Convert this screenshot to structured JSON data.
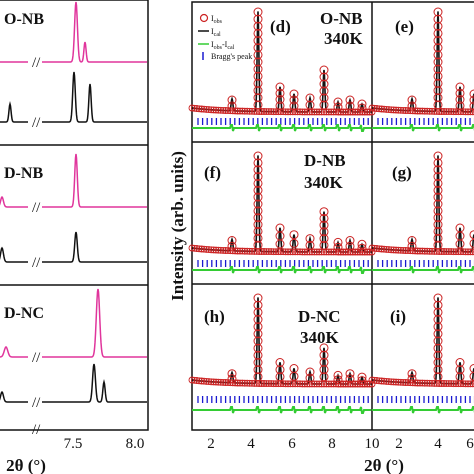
{
  "colors": {
    "pink": "#e0359c",
    "black": "#111111",
    "obs": "#cc2222",
    "calc": "#111111",
    "fit": "#cc2222",
    "diff": "#33cc33",
    "bragg": "#1a1ad0"
  },
  "left_panel": {
    "sample_labels": [
      "O-NB",
      "D-NB",
      "D-NC"
    ],
    "x_tick_labels": [
      "7.5",
      "8.0"
    ],
    "x_axis_label": "2θ (°)",
    "break_mark": "//"
  },
  "right_panel": {
    "y_axis_label": "Intensity (arb. units)",
    "x_axis_label": "2θ (°)",
    "x_tick_labels": [
      "2",
      "4",
      "6",
      "8",
      "10",
      "2",
      "4",
      "6"
    ],
    "panels": [
      {
        "letter": "(d)",
        "sample": "O-NB",
        "temp": "340K"
      },
      {
        "letter": "(e)",
        "sample": "",
        "temp": ""
      },
      {
        "letter": "(f)",
        "sample": "D-NB",
        "temp": "340K"
      },
      {
        "letter": "(g)",
        "sample": "",
        "temp": ""
      },
      {
        "letter": "(h)",
        "sample": "D-NC",
        "temp": "340K"
      },
      {
        "letter": "(i)",
        "sample": "",
        "temp": ""
      }
    ],
    "legend": {
      "obs": "I",
      "obs_sub": "obs",
      "calc": "I",
      "calc_sub": "cal",
      "diff": "I",
      "diff_sub": "obs",
      "diff_sub2": "cal",
      "bragg": "Bragg's peak"
    }
  },
  "chart_data": [
    {
      "type": "line",
      "title": "",
      "xlabel": "2θ (°)",
      "ylabel": "",
      "xlim": [
        7.0,
        8.0
      ],
      "series": [
        {
          "group": "O-NB",
          "peaks_2theta": [
            7.48,
            7.6
          ]
        },
        {
          "group": "D-NB",
          "peaks_2theta": [
            7.5
          ]
        },
        {
          "group": "D-NC",
          "peaks_2theta": [
            7.68,
            7.75
          ]
        }
      ]
    },
    {
      "type": "scatter",
      "title": "",
      "xlabel": "2θ (°)",
      "ylabel": "Intensity (arb. units)",
      "xlim": [
        1,
        10
      ],
      "peaks_2theta": [
        3.0,
        4.3,
        5.4,
        6.1,
        6.9,
        7.6,
        8.3,
        8.9,
        9.5
      ]
    }
  ]
}
